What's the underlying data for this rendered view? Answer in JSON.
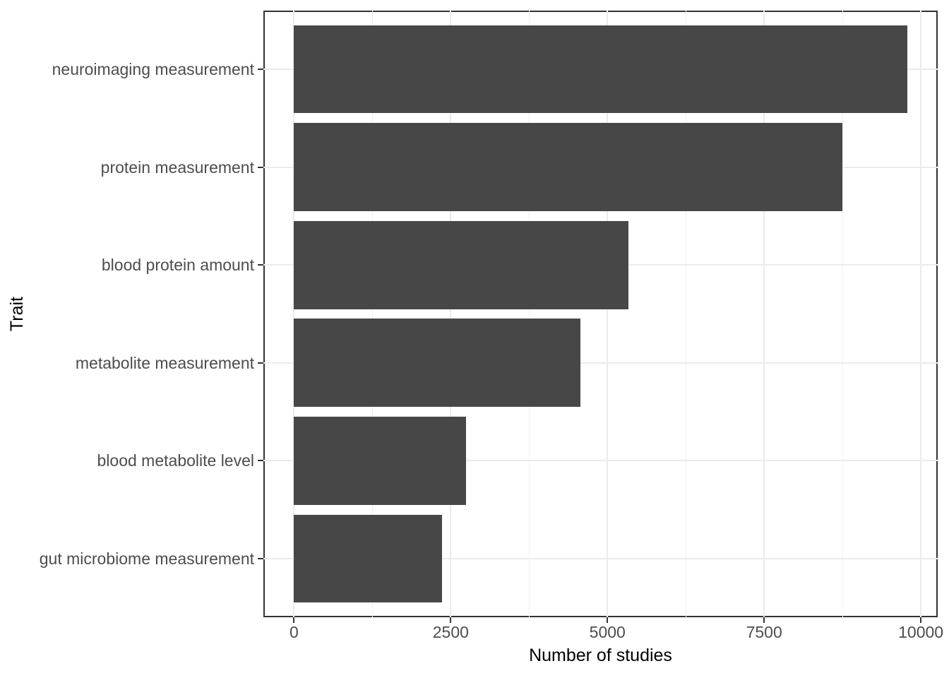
{
  "chart_data": {
    "type": "bar",
    "orientation": "horizontal",
    "title": "",
    "xlabel": "Number of studies",
    "ylabel": "Trait",
    "categories": [
      "neuroimaging measurement",
      "protein measurement",
      "blood protein amount",
      "metabolite measurement",
      "blood metabolite level",
      "gut microbiome measurement"
    ],
    "values": [
      9780,
      8750,
      5340,
      4570,
      2740,
      2360
    ],
    "x_ticks": [
      0,
      2500,
      5000,
      7500,
      10000
    ],
    "x_tick_labels": [
      "0",
      "2500",
      "5000",
      "7500",
      "10000"
    ],
    "xlim": [
      0,
      10000
    ],
    "axis_expansion": 0.05,
    "bar_width_fraction": 0.9,
    "grid": "major-vertical-and-minor-vertical-plus-category-lines",
    "legend": "none",
    "colors": {
      "bar": "#474747",
      "panel_border": "#333333",
      "grid_major": "#ebebeb",
      "grid_minor": "#f0f0f0",
      "tick_mark": "#333333",
      "axis_text": "#4d4d4d",
      "axis_title": "#000000",
      "background": "#ffffff"
    }
  }
}
